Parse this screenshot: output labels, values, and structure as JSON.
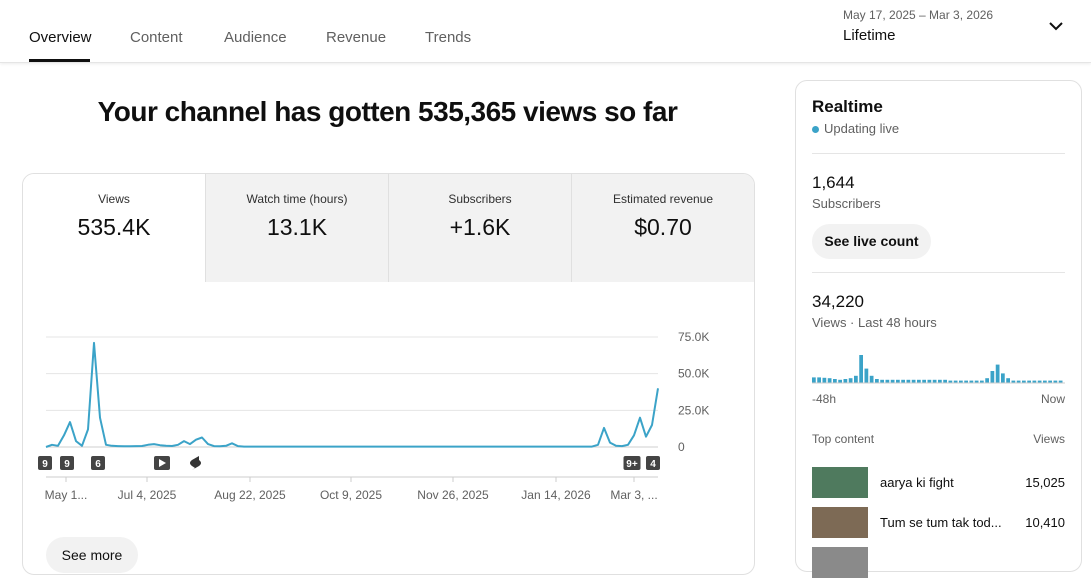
{
  "tabs": [
    "Overview",
    "Content",
    "Audience",
    "Revenue",
    "Trends"
  ],
  "date_range": {
    "dates": "May 17, 2025 – Mar 3, 2026",
    "period": "Lifetime"
  },
  "headline": "Your channel has gotten 535,365 views so far",
  "metrics": [
    {
      "label": "Views",
      "value": "535.4K"
    },
    {
      "label": "Watch time (hours)",
      "value": "13.1K"
    },
    {
      "label": "Subscribers",
      "value": "+1.6K"
    },
    {
      "label": "Estimated revenue",
      "value": "$0.70"
    }
  ],
  "chart_data": {
    "type": "line",
    "color": "#3ba3c8",
    "grid": true,
    "values": [
      0,
      1500,
      800,
      8000,
      17000,
      4000,
      800,
      12000,
      71000,
      20000,
      1500,
      800,
      600,
      500,
      500,
      600,
      700,
      1500,
      2000,
      1200,
      800,
      700,
      1500,
      4000,
      2000,
      5000,
      6500,
      2000,
      600,
      500,
      800,
      2500,
      600,
      300,
      300,
      300,
      300,
      300,
      300,
      300,
      300,
      300,
      300,
      300,
      300,
      300,
      300,
      300,
      300,
      300,
      300,
      300,
      300,
      300,
      300,
      300,
      300,
      300,
      300,
      300,
      300,
      300,
      300,
      300,
      300,
      300,
      300,
      300,
      300,
      300,
      300,
      300,
      300,
      300,
      300,
      300,
      300,
      300,
      300,
      300,
      300,
      300,
      300,
      300,
      300,
      300,
      300,
      300,
      300,
      300,
      300,
      300,
      1500,
      13000,
      3000,
      800,
      600,
      1500,
      8000,
      20000,
      7000,
      15000,
      40000
    ],
    "ylim": [
      0,
      75000
    ],
    "yticks": [
      0,
      {
        "value": 25000,
        "label": "25.0K"
      },
      {
        "value": 50000,
        "label": "50.0K"
      },
      {
        "value": 75000,
        "label": "75.0K"
      }
    ],
    "xtick_labels": [
      "May 1...",
      "Jul 4, 2025",
      "Aug 22, 2025",
      "Oct 9, 2025",
      "Nov 26, 2025",
      "Jan 14, 2026",
      "Mar 3, ..."
    ],
    "markers": [
      "9",
      "9",
      "6",
      "9+",
      "4"
    ]
  },
  "see_more": "See more",
  "realtime": {
    "title": "Realtime",
    "status": "Updating live",
    "subscribers": {
      "value": "1,644",
      "label": "Subscribers"
    },
    "live_count_button": "See live count",
    "views": {
      "value": "34,220",
      "label": "Views · Last 48 hours"
    },
    "hourly_views": {
      "type": "bar",
      "color": "#3ba3c8",
      "start_label": "-48h",
      "end_label": "Now",
      "values": [
        700,
        700,
        650,
        600,
        500,
        400,
        500,
        600,
        900,
        3500,
        1800,
        900,
        500,
        400,
        400,
        400,
        400,
        400,
        400,
        400,
        400,
        400,
        400,
        400,
        400,
        400,
        300,
        300,
        300,
        300,
        300,
        300,
        300,
        600,
        1500,
        2300,
        1200,
        600,
        300,
        300,
        300,
        300,
        300,
        300,
        300,
        300,
        300,
        300
      ]
    },
    "top_content": {
      "title": "Top content",
      "column": "Views",
      "items": [
        {
          "title": "aarya ki fight",
          "views": "15,025"
        },
        {
          "title": "Tum se tum tak tod...",
          "views": "10,410"
        }
      ]
    }
  }
}
